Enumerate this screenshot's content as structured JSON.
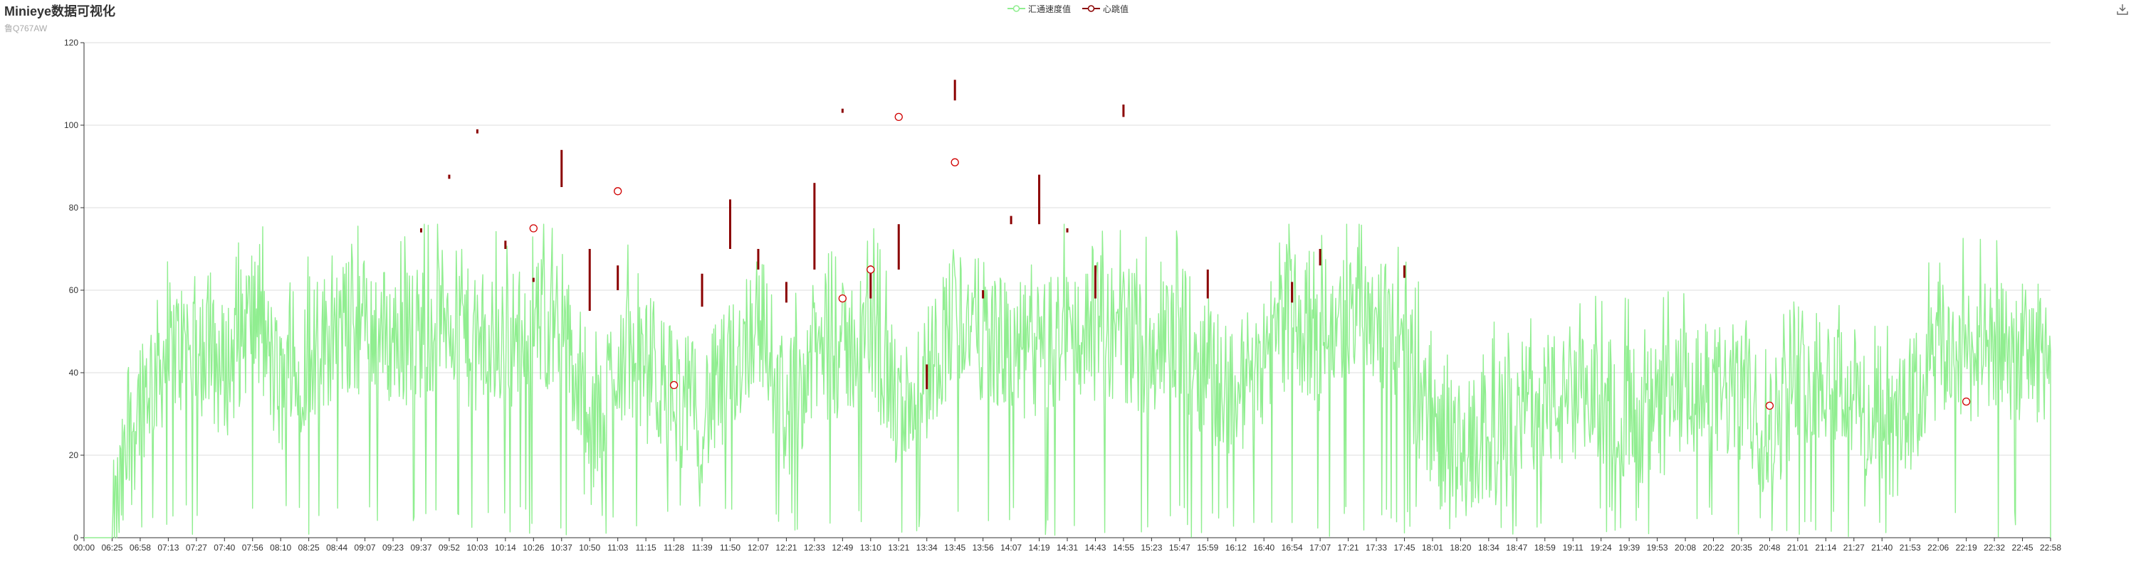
{
  "title": "Minieye数据可视化",
  "subtitle": "鲁Q767AW",
  "toolbox": {
    "download_icon": "download-icon"
  },
  "colors": {
    "speed": "#90ee90",
    "heartbeat": "#8b0000",
    "grid": "#dddddd",
    "axis": "#333333"
  },
  "chart_data": {
    "type": "line",
    "series": [
      {
        "name": "汇通速度值",
        "kind": "line",
        "color": "#90ee90"
      },
      {
        "name": "心跳值",
        "kind": "candlestick",
        "color": "#8b0000"
      }
    ],
    "ylim": [
      0,
      120
    ],
    "yticks": [
      0,
      20,
      40,
      60,
      80,
      100,
      120
    ],
    "grid": true,
    "legend_position": "top-center",
    "xticks": [
      "00:00",
      "06:25",
      "06:58",
      "07:13",
      "07:27",
      "07:40",
      "07:56",
      "08:10",
      "08:25",
      "08:44",
      "09:07",
      "09:23",
      "09:37",
      "09:52",
      "10:03",
      "10:14",
      "10:26",
      "10:37",
      "10:50",
      "11:03",
      "11:15",
      "11:28",
      "11:39",
      "11:50",
      "12:07",
      "12:21",
      "12:33",
      "12:49",
      "13:10",
      "13:21",
      "13:34",
      "13:45",
      "13:56",
      "14:07",
      "14:19",
      "14:31",
      "14:43",
      "14:55",
      "15:23",
      "15:47",
      "15:59",
      "16:12",
      "16:40",
      "16:54",
      "17:07",
      "17:21",
      "17:33",
      "17:45",
      "18:01",
      "18:20",
      "18:34",
      "18:47",
      "18:59",
      "19:11",
      "19:24",
      "19:39",
      "19:53",
      "20:08",
      "20:22",
      "20:35",
      "20:48",
      "21:01",
      "21:14",
      "21:27",
      "21:40",
      "21:53",
      "22:06",
      "22:19",
      "22:32",
      "22:45",
      "22:58"
    ],
    "speed_profile": [
      [
        "00:00",
        0
      ],
      [
        "06:25",
        0
      ],
      [
        "06:58",
        35
      ],
      [
        "07:13",
        45
      ],
      [
        "07:27",
        47
      ],
      [
        "07:40",
        40
      ],
      [
        "07:56",
        55
      ],
      [
        "08:10",
        35
      ],
      [
        "08:25",
        45
      ],
      [
        "08:44",
        50
      ],
      [
        "09:07",
        52
      ],
      [
        "09:23",
        48
      ],
      [
        "09:37",
        50
      ],
      [
        "09:52",
        55
      ],
      [
        "10:03",
        45
      ],
      [
        "10:14",
        48
      ],
      [
        "10:26",
        50
      ],
      [
        "10:37",
        55
      ],
      [
        "10:50",
        20
      ],
      [
        "11:03",
        45
      ],
      [
        "11:15",
        40
      ],
      [
        "11:28",
        35
      ],
      [
        "11:39",
        30
      ],
      [
        "11:50",
        40
      ],
      [
        "12:07",
        55
      ],
      [
        "12:21",
        30
      ],
      [
        "12:33",
        45
      ],
      [
        "12:49",
        45
      ],
      [
        "13:10",
        50
      ],
      [
        "13:21",
        30
      ],
      [
        "13:34",
        40
      ],
      [
        "13:45",
        55
      ],
      [
        "13:56",
        50
      ],
      [
        "14:07",
        45
      ],
      [
        "14:19",
        45
      ],
      [
        "14:31",
        50
      ],
      [
        "14:43",
        50
      ],
      [
        "14:55",
        50
      ],
      [
        "15:23",
        45
      ],
      [
        "15:47",
        50
      ],
      [
        "15:59",
        40
      ],
      [
        "16:12",
        35
      ],
      [
        "16:40",
        45
      ],
      [
        "16:54",
        55
      ],
      [
        "17:07",
        45
      ],
      [
        "17:21",
        55
      ],
      [
        "17:33",
        55
      ],
      [
        "17:45",
        45
      ],
      [
        "18:01",
        25
      ],
      [
        "18:20",
        20
      ],
      [
        "18:34",
        25
      ],
      [
        "18:47",
        30
      ],
      [
        "18:59",
        35
      ],
      [
        "19:11",
        30
      ],
      [
        "19:24",
        35
      ],
      [
        "19:39",
        30
      ],
      [
        "19:53",
        30
      ],
      [
        "20:08",
        35
      ],
      [
        "20:22",
        35
      ],
      [
        "20:35",
        35
      ],
      [
        "20:48",
        25
      ],
      [
        "21:01",
        40
      ],
      [
        "21:14",
        40
      ],
      [
        "21:27",
        35
      ],
      [
        "21:40",
        22
      ],
      [
        "21:53",
        30
      ],
      [
        "22:06",
        45
      ],
      [
        "22:19",
        45
      ],
      [
        "22:32",
        45
      ],
      [
        "22:45",
        45
      ],
      [
        "22:58",
        45
      ]
    ],
    "heartbeat_circles": [
      {
        "x": "10:26",
        "y": 75
      },
      {
        "x": "11:03",
        "y": 84
      },
      {
        "x": "11:28",
        "y": 37
      },
      {
        "x": "12:49",
        "y": 58
      },
      {
        "x": "13:10",
        "y": 65
      },
      {
        "x": "13:21",
        "y": 102
      },
      {
        "x": "13:45",
        "y": 91
      },
      {
        "x": "20:48",
        "y": 32
      },
      {
        "x": "22:19",
        "y": 33
      }
    ],
    "heartbeat_bars": [
      {
        "x": "09:37",
        "low": 74,
        "high": 75
      },
      {
        "x": "09:52",
        "low": 87,
        "high": 88
      },
      {
        "x": "10:03",
        "low": 98,
        "high": 99
      },
      {
        "x": "10:14",
        "low": 70,
        "high": 72
      },
      {
        "x": "10:26",
        "low": 62,
        "high": 63
      },
      {
        "x": "10:37",
        "low": 85,
        "high": 94
      },
      {
        "x": "10:50",
        "low": 55,
        "high": 70
      },
      {
        "x": "11:03",
        "low": 60,
        "high": 66
      },
      {
        "x": "11:39",
        "low": 56,
        "high": 64
      },
      {
        "x": "11:50",
        "low": 70,
        "high": 82
      },
      {
        "x": "12:07",
        "low": 65,
        "high": 70
      },
      {
        "x": "12:21",
        "low": 57,
        "high": 62
      },
      {
        "x": "12:33",
        "low": 65,
        "high": 86
      },
      {
        "x": "12:49",
        "low": 103,
        "high": 104
      },
      {
        "x": "13:10",
        "low": 58,
        "high": 66
      },
      {
        "x": "13:21",
        "low": 65,
        "high": 76
      },
      {
        "x": "13:34",
        "low": 36,
        "high": 42
      },
      {
        "x": "13:45",
        "low": 106,
        "high": 111
      },
      {
        "x": "13:56",
        "low": 58,
        "high": 60
      },
      {
        "x": "14:07",
        "low": 76,
        "high": 78
      },
      {
        "x": "14:19",
        "low": 76,
        "high": 88
      },
      {
        "x": "14:31",
        "low": 74,
        "high": 75
      },
      {
        "x": "14:43",
        "low": 58,
        "high": 66
      },
      {
        "x": "14:55",
        "low": 102,
        "high": 105
      },
      {
        "x": "15:59",
        "low": 58,
        "high": 65
      },
      {
        "x": "16:54",
        "low": 57,
        "high": 62
      },
      {
        "x": "17:07",
        "low": 66,
        "high": 70
      },
      {
        "x": "17:45",
        "low": 63,
        "high": 66
      }
    ]
  }
}
